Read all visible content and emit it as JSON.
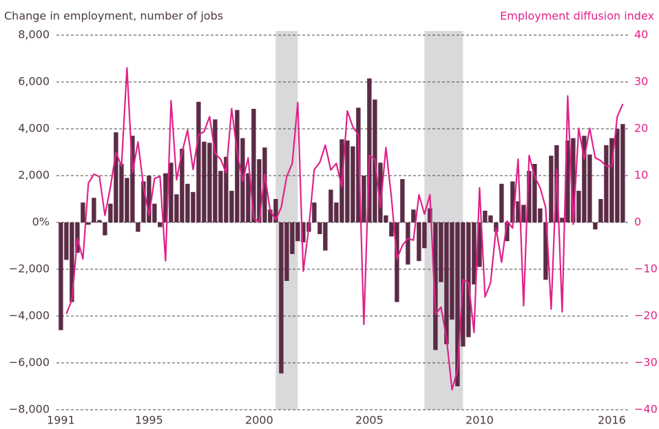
{
  "chart_data": {
    "type": "bar-line",
    "y_title": "Change in employment, number of jobs",
    "y2_title": "Employment diffusion index",
    "x": [
      1991,
      1991.25,
      1991.5,
      1991.75,
      1992,
      1992.25,
      1992.5,
      1992.75,
      1993,
      1993.25,
      1993.5,
      1993.75,
      1994,
      1994.25,
      1994.5,
      1994.75,
      1995,
      1995.25,
      1995.5,
      1995.75,
      1996,
      1996.25,
      1996.5,
      1996.75,
      1997,
      1997.25,
      1997.5,
      1997.75,
      1998,
      1998.25,
      1998.5,
      1998.75,
      1999,
      1999.25,
      1999.5,
      1999.75,
      2000,
      2000.25,
      2000.5,
      2000.75,
      2001,
      2001.25,
      2001.5,
      2001.75,
      2002,
      2002.25,
      2002.5,
      2002.75,
      2003,
      2003.25,
      2003.5,
      2003.75,
      2004,
      2004.25,
      2004.5,
      2004.75,
      2005,
      2005.25,
      2005.5,
      2005.75,
      2006,
      2006.25,
      2006.5,
      2006.75,
      2007,
      2007.25,
      2007.5,
      2007.75,
      2008,
      2008.25,
      2008.5,
      2008.75,
      2009,
      2009.25,
      2009.5,
      2009.75,
      2010,
      2010.25,
      2010.5,
      2010.75,
      2011,
      2011.25,
      2011.5,
      2011.75,
      2012,
      2012.25,
      2012.5,
      2012.75,
      2013,
      2013.25,
      2013.5,
      2013.75,
      2014,
      2014.25,
      2014.5,
      2014.75,
      2015,
      2015.25,
      2015.5,
      2015.75,
      2016,
      2016.25,
      2016.5
    ],
    "series": [
      {
        "type": "bar",
        "color": "#5b2b45",
        "values": [
          -4600,
          -1600,
          -3400,
          -1300,
          850,
          -100,
          1050,
          100,
          -550,
          800,
          3850,
          2500,
          1900,
          3700,
          -400,
          1750,
          2000,
          800,
          -200,
          2100,
          2550,
          1200,
          3150,
          1650,
          1300,
          5150,
          3450,
          3400,
          4400,
          2200,
          2800,
          1350,
          4800,
          3600,
          2100,
          4850,
          2700,
          3200,
          550,
          1000,
          -6450,
          -2500,
          -1350,
          -800,
          -850,
          -400,
          850,
          -500,
          -1200,
          1400,
          850,
          3550,
          3500,
          3250,
          4900,
          2000,
          6150,
          5250,
          2550,
          300,
          -600,
          -3400,
          1850,
          -1800,
          550,
          -1650,
          -1100,
          600,
          -5450,
          -2550,
          -5200,
          -4150,
          -7000,
          -5300,
          -4900,
          -2650,
          -1900,
          500,
          300,
          -400,
          1650,
          -800,
          1750,
          900,
          750,
          2200,
          2500,
          600,
          -2450,
          2850,
          3300,
          200,
          3500,
          3600,
          1350,
          3700,
          2900,
          -300,
          1000,
          3300,
          3600,
          4000,
          4200
        ]
      },
      {
        "type": "line",
        "axis": "y2",
        "color": "#e0218a",
        "values": [
          null,
          -19.5,
          -16.6,
          -3.4,
          -7.8,
          8.4,
          10.3,
          9.8,
          1.5,
          7.6,
          15,
          12,
          33,
          10.6,
          17.2,
          7.6,
          1.5,
          9.4,
          9.8,
          -8.2,
          26,
          9.1,
          15,
          19.7,
          11.3,
          18.7,
          19.4,
          22.6,
          14.7,
          13.5,
          10.6,
          24.3,
          15,
          8.8,
          13.8,
          1,
          0,
          10.3,
          2.5,
          0.6,
          3.2,
          9.8,
          12.6,
          25.6,
          -10.4,
          -1.2,
          11.3,
          12.8,
          16.5,
          11.2,
          12.6,
          7.6,
          23.8,
          20.4,
          18.7,
          -21.8,
          14.3,
          13.5,
          3.2,
          16,
          5.4,
          -7.8,
          -4.9,
          -3.4,
          -3.8,
          5.9,
          1.8,
          5.9,
          -19.6,
          -18.1,
          -24.7,
          -35.7,
          -31.6,
          -12.2,
          -12.9,
          -23.5,
          7.4,
          -15.9,
          -12.9,
          -1.2,
          -8.5,
          0.3,
          -1.2,
          13.5,
          -17.8,
          14.3,
          9.8,
          7.4,
          3.2,
          -18.5,
          11.3,
          -19.1,
          27,
          -0.4,
          20.1,
          13.5,
          20.1,
          13.8,
          13.2,
          12,
          12,
          22.6,
          25.3
        ]
      }
    ],
    "xlim": [
      1990.8,
      2016.8
    ],
    "xticks": [
      1991,
      1995,
      2000,
      2005,
      2010,
      2016
    ],
    "ylim": [
      -8000,
      8000
    ],
    "yticks": [
      {
        "value": -8000,
        "label": "−8,000"
      },
      {
        "value": -6000,
        "label": "−6,000"
      },
      {
        "value": -4000,
        "label": "−4,000"
      },
      {
        "value": -2000,
        "label": "−2,000"
      },
      {
        "value": 0,
        "label": "0%"
      },
      {
        "value": 2000,
        "label": "2,000"
      },
      {
        "value": 4000,
        "label": "4,000"
      },
      {
        "value": 6000,
        "label": "6,000"
      },
      {
        "value": 8000,
        "label": "8,000"
      }
    ],
    "y2lim": [
      -40,
      40
    ],
    "y2ticks": [
      {
        "value": -40,
        "label": "−40"
      },
      {
        "value": -30,
        "label": "−30"
      },
      {
        "value": -20,
        "label": "−20"
      },
      {
        "value": -10,
        "label": "−10"
      },
      0,
      10,
      20,
      30,
      40
    ],
    "y2_color": "#e0218a",
    "shaded": [
      [
        2000.75,
        2001.75
      ],
      [
        2007.5,
        2009.25
      ]
    ],
    "shade_color": "#d9d9db",
    "grid": true
  }
}
